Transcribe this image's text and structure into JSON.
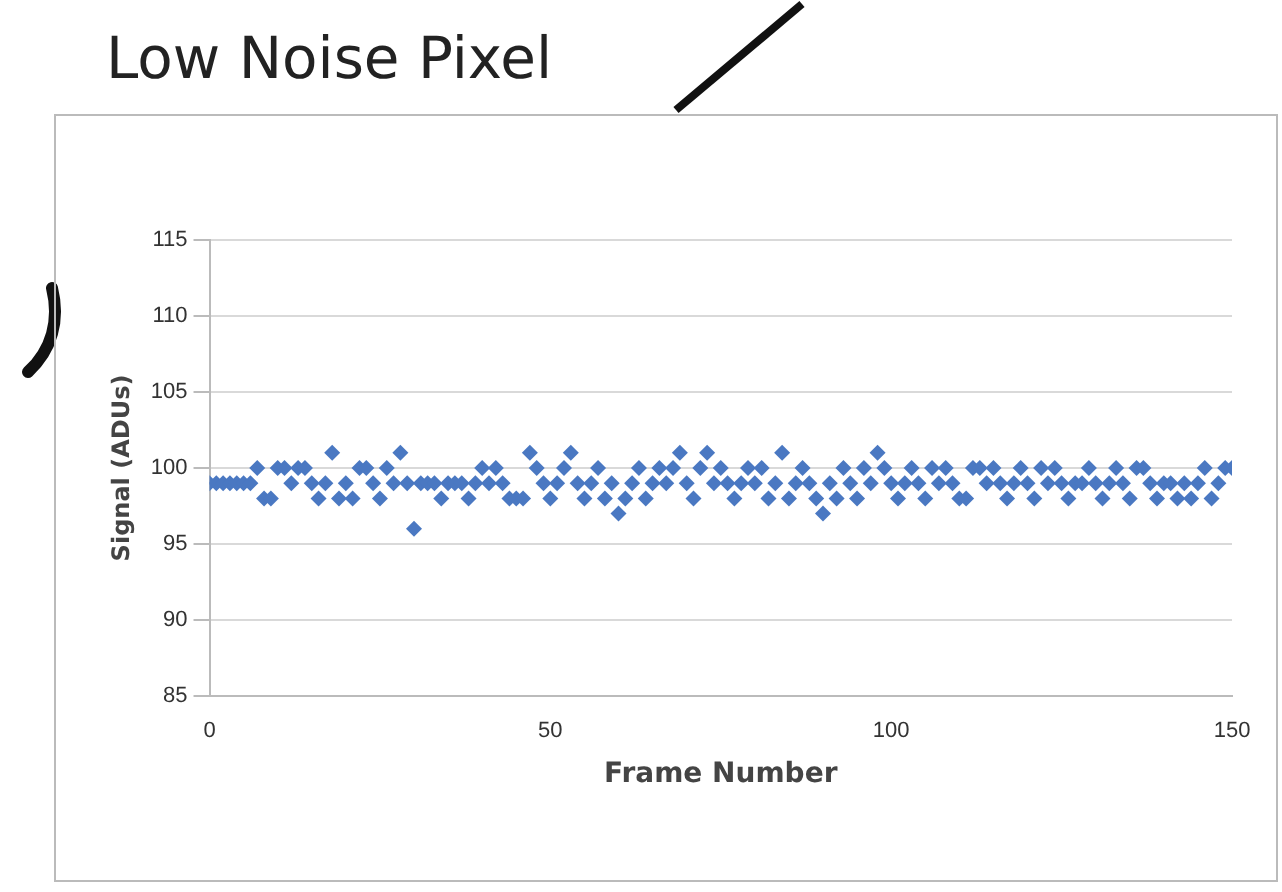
{
  "chart_data": {
    "type": "scatter",
    "title": "Low Noise Pixel",
    "xlabel": "Frame Number",
    "ylabel": "Signal (ADUs)",
    "xlim": [
      0,
      150
    ],
    "xticks": [
      0,
      50,
      100,
      150
    ],
    "ylim": [
      85,
      115
    ],
    "yticks": [
      85,
      90,
      95,
      100,
      105,
      110,
      115
    ],
    "grid": "y",
    "marker": "diamond",
    "legend": false,
    "series": [
      {
        "color": "#4a78c2",
        "x": [
          0,
          1,
          2,
          3,
          4,
          5,
          6,
          7,
          8,
          9,
          10,
          11,
          12,
          13,
          14,
          15,
          16,
          17,
          18,
          19,
          20,
          21,
          22,
          23,
          24,
          25,
          26,
          27,
          28,
          29,
          30,
          31,
          32,
          33,
          34,
          35,
          36,
          37,
          38,
          39,
          40,
          41,
          42,
          43,
          44,
          45,
          46,
          47,
          48,
          49,
          50,
          51,
          52,
          53,
          54,
          55,
          56,
          57,
          58,
          59,
          60,
          61,
          62,
          63,
          64,
          65,
          66,
          67,
          68,
          69,
          70,
          71,
          72,
          73,
          74,
          75,
          76,
          77,
          78,
          79,
          80,
          81,
          82,
          83,
          84,
          85,
          86,
          87,
          88,
          89,
          90,
          91,
          92,
          93,
          94,
          95,
          96,
          97,
          98,
          99,
          100,
          101,
          102,
          103,
          104,
          105,
          106,
          107,
          108,
          109,
          110,
          111,
          112,
          113,
          114,
          115,
          116,
          117,
          118,
          119,
          120,
          121,
          122,
          123,
          124,
          125,
          126,
          127,
          128,
          129,
          130,
          131,
          132,
          133,
          134,
          135,
          136,
          137,
          138,
          139,
          140,
          141,
          142,
          143,
          144,
          145,
          146,
          147,
          148,
          149,
          150
        ],
        "values": [
          99,
          99,
          99,
          99,
          99,
          99,
          99,
          100,
          98,
          98,
          100,
          100,
          99,
          100,
          100,
          99,
          98,
          99,
          101,
          98,
          99,
          98,
          100,
          100,
          99,
          98,
          100,
          99,
          101,
          99,
          96,
          99,
          99,
          99,
          98,
          99,
          99,
          99,
          98,
          99,
          100,
          99,
          100,
          99,
          98,
          98,
          98,
          101,
          100,
          99,
          98,
          99,
          100,
          101,
          99,
          98,
          99,
          100,
          98,
          99,
          97,
          98,
          99,
          100,
          98,
          99,
          100,
          99,
          100,
          101,
          99,
          98,
          100,
          101,
          99,
          100,
          99,
          98,
          99,
          100,
          99,
          100,
          98,
          99,
          101,
          98,
          99,
          100,
          99,
          98,
          97,
          99,
          98,
          100,
          99,
          98,
          100,
          99,
          101,
          100,
          99,
          98,
          99,
          100,
          99,
          98,
          100,
          99,
          100,
          99,
          98,
          98,
          100,
          100,
          99,
          100,
          99,
          98,
          99,
          100,
          99,
          98,
          100,
          99,
          100,
          99,
          98,
          99,
          99,
          100,
          99,
          98,
          99,
          100,
          99,
          98,
          100,
          100,
          99,
          98,
          99,
          99,
          98,
          99,
          98,
          99,
          100,
          98,
          99,
          100,
          100
        ]
      }
    ]
  }
}
